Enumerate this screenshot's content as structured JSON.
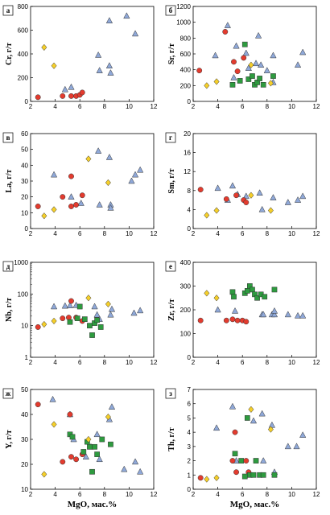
{
  "colors": {
    "triangle": "#8fa8d8",
    "circle": "#e33b2e",
    "square": "#2e9b3f",
    "diamond": "#f5cf2a",
    "stroke": "#333333"
  },
  "chart_data": [
    {
      "type": "scatter",
      "label": "а",
      "ylabel": "Cr, г/т",
      "xlabel": "",
      "xlim": [
        2,
        12
      ],
      "ylim": [
        0,
        800
      ],
      "yticks": [
        0,
        200,
        400,
        600,
        800
      ],
      "ylog": false,
      "series": [
        {
          "marker": "triangle",
          "points": [
            [
              4.8,
              100
            ],
            [
              5.3,
              120
            ],
            [
              7.5,
              390
            ],
            [
              7.6,
              260
            ],
            [
              8.4,
              680
            ],
            [
              8.4,
              300
            ],
            [
              8.5,
              240
            ],
            [
              9.8,
              720
            ],
            [
              10.5,
              570
            ]
          ]
        },
        {
          "marker": "circle",
          "points": [
            [
              2.6,
              35
            ],
            [
              4.6,
              45
            ],
            [
              5.3,
              45
            ],
            [
              5.7,
              45
            ],
            [
              6.0,
              55
            ],
            [
              6.2,
              75
            ]
          ]
        },
        {
          "marker": "diamond",
          "points": [
            [
              3.1,
              455
            ],
            [
              3.9,
              300
            ]
          ]
        }
      ]
    },
    {
      "type": "scatter",
      "label": "б",
      "ylabel": "Sr, г/т",
      "xlabel": "",
      "xlim": [
        2,
        12
      ],
      "ylim": [
        0,
        1200
      ],
      "yticks": [
        0,
        200,
        400,
        600,
        800,
        1000,
        1200
      ],
      "ylog": false,
      "series": [
        {
          "marker": "triangle",
          "points": [
            [
              3.8,
              580
            ],
            [
              4.8,
              960
            ],
            [
              5.3,
              300
            ],
            [
              5.5,
              700
            ],
            [
              6.3,
              610
            ],
            [
              6.5,
              420
            ],
            [
              7.1,
              480
            ],
            [
              7.3,
              830
            ],
            [
              7.5,
              460
            ],
            [
              8.0,
              390
            ],
            [
              8.5,
              580
            ],
            [
              8.5,
              240
            ],
            [
              10.5,
              460
            ],
            [
              10.9,
              620
            ]
          ]
        },
        {
          "marker": "circle",
          "points": [
            [
              2.5,
              390
            ],
            [
              4.6,
              880
            ],
            [
              5.3,
              500
            ],
            [
              5.6,
              380
            ],
            [
              6.1,
              550
            ]
          ]
        },
        {
          "marker": "square",
          "points": [
            [
              5.2,
              210
            ],
            [
              5.8,
              260
            ],
            [
              6.2,
              720
            ],
            [
              6.5,
              280
            ],
            [
              6.8,
              320
            ],
            [
              7.0,
              210
            ],
            [
              7.2,
              240
            ],
            [
              7.4,
              290
            ],
            [
              7.7,
              210
            ],
            [
              8.5,
              320
            ]
          ]
        },
        {
          "marker": "diamond",
          "points": [
            [
              3.1,
              200
            ],
            [
              3.9,
              250
            ],
            [
              6.7,
              460
            ],
            [
              8.3,
              230
            ]
          ]
        }
      ]
    },
    {
      "type": "scatter",
      "label": "в",
      "ylabel": "La, г/т",
      "xlabel": "",
      "xlim": [
        2,
        12
      ],
      "ylim": [
        0,
        60
      ],
      "yticks": [
        0,
        10,
        20,
        30,
        40,
        50,
        60
      ],
      "ylog": false,
      "series": [
        {
          "marker": "triangle",
          "points": [
            [
              3.9,
              34
            ],
            [
              5.3,
              20
            ],
            [
              6.1,
              16
            ],
            [
              7.5,
              49
            ],
            [
              7.6,
              15
            ],
            [
              8.4,
              45
            ],
            [
              8.5,
              15
            ],
            [
              8.5,
              13
            ],
            [
              10.2,
              30
            ],
            [
              10.5,
              34
            ],
            [
              10.9,
              37
            ]
          ]
        },
        {
          "marker": "circle",
          "points": [
            [
              2.6,
              14
            ],
            [
              4.6,
              20
            ],
            [
              5.3,
              33
            ],
            [
              5.3,
              14
            ],
            [
              5.7,
              15
            ],
            [
              6.2,
              21
            ]
          ]
        },
        {
          "marker": "diamond",
          "points": [
            [
              3.1,
              8
            ],
            [
              3.9,
              12
            ],
            [
              6.7,
              44
            ],
            [
              8.3,
              29
            ]
          ]
        }
      ]
    },
    {
      "type": "scatter",
      "label": "г",
      "ylabel": "Sm, г/т",
      "xlabel": "",
      "xlim": [
        2,
        12
      ],
      "ylim": [
        0,
        20
      ],
      "yticks": [
        0,
        4,
        8,
        12,
        16,
        20
      ],
      "ylog": false,
      "series": [
        {
          "marker": "triangle",
          "points": [
            [
              4.0,
              8.5
            ],
            [
              4.8,
              6.0
            ],
            [
              5.2,
              9.0
            ],
            [
              5.6,
              7.2
            ],
            [
              6.3,
              6.8
            ],
            [
              7.4,
              7.5
            ],
            [
              7.6,
              4.0
            ],
            [
              8.5,
              6.5
            ],
            [
              9.7,
              5.5
            ],
            [
              10.5,
              6.0
            ],
            [
              10.9,
              6.8
            ]
          ]
        },
        {
          "marker": "circle",
          "points": [
            [
              2.6,
              8.2
            ],
            [
              4.7,
              6.2
            ],
            [
              5.5,
              7.0
            ],
            [
              6.1,
              6.0
            ],
            [
              6.3,
              5.5
            ]
          ]
        },
        {
          "marker": "diamond",
          "points": [
            [
              3.1,
              2.8
            ],
            [
              3.9,
              3.8
            ],
            [
              6.7,
              7.0
            ],
            [
              8.3,
              3.8
            ]
          ]
        }
      ]
    },
    {
      "type": "scatter",
      "label": "д",
      "ylabel": "Nb, г/т",
      "xlabel": "",
      "xlim": [
        2,
        12
      ],
      "ylim": [
        1,
        1000
      ],
      "yticks": [
        1,
        10,
        100,
        1000
      ],
      "ylog": true,
      "series": [
        {
          "marker": "triangle",
          "points": [
            [
              3.9,
              40
            ],
            [
              4.8,
              42
            ],
            [
              5.2,
              43
            ],
            [
              5.7,
              44
            ],
            [
              7.2,
              40
            ],
            [
              7.4,
              22
            ],
            [
              7.6,
              16
            ],
            [
              8.5,
              22
            ],
            [
              8.6,
              33
            ],
            [
              10.4,
              25
            ],
            [
              10.9,
              30
            ]
          ]
        },
        {
          "marker": "circle",
          "points": [
            [
              2.6,
              9
            ],
            [
              4.6,
              17
            ],
            [
              5.1,
              18
            ],
            [
              5.3,
              60
            ],
            [
              5.7,
              18
            ],
            [
              6.2,
              14
            ]
          ]
        },
        {
          "marker": "square",
          "points": [
            [
              5.2,
              13
            ],
            [
              5.8,
              17
            ],
            [
              6.0,
              40
            ],
            [
              6.4,
              16
            ],
            [
              6.8,
              10
            ],
            [
              7.0,
              5
            ],
            [
              7.2,
              12
            ],
            [
              7.4,
              15
            ],
            [
              7.7,
              9
            ]
          ]
        },
        {
          "marker": "diamond",
          "points": [
            [
              3.1,
              11
            ],
            [
              3.9,
              14
            ],
            [
              6.7,
              75
            ],
            [
              8.3,
              48
            ]
          ]
        }
      ]
    },
    {
      "type": "scatter",
      "label": "е",
      "ylabel": "Zr, г/т",
      "xlabel": "",
      "xlim": [
        2,
        12
      ],
      "ylim": [
        0,
        400
      ],
      "yticks": [
        0,
        100,
        200,
        300,
        400
      ],
      "ylog": false,
      "series": [
        {
          "marker": "triangle",
          "points": [
            [
              4.0,
              200
            ],
            [
              5.4,
              195
            ],
            [
              7.6,
              180
            ],
            [
              7.7,
              180
            ],
            [
              8.4,
              180
            ],
            [
              8.6,
              180
            ],
            [
              8.6,
              195
            ],
            [
              9.7,
              180
            ],
            [
              10.5,
              175
            ],
            [
              10.9,
              175
            ]
          ]
        },
        {
          "marker": "circle",
          "points": [
            [
              2.6,
              155
            ],
            [
              4.7,
              155
            ],
            [
              5.2,
              160
            ],
            [
              5.6,
              155
            ],
            [
              6.0,
              155
            ],
            [
              6.3,
              150
            ]
          ]
        },
        {
          "marker": "square",
          "points": [
            [
              5.2,
              275
            ],
            [
              5.3,
              255
            ],
            [
              6.2,
              270
            ],
            [
              6.4,
              280
            ],
            [
              6.6,
              300
            ],
            [
              6.8,
              285
            ],
            [
              7.0,
              265
            ],
            [
              7.2,
              250
            ],
            [
              7.5,
              265
            ],
            [
              7.8,
              255
            ],
            [
              8.6,
              285
            ]
          ]
        },
        {
          "marker": "diamond",
          "points": [
            [
              3.1,
              270
            ],
            [
              3.9,
              250
            ]
          ]
        }
      ]
    },
    {
      "type": "scatter",
      "label": "ж",
      "ylabel": "Y, г/т",
      "xlabel": "MgO, мас.%",
      "xlim": [
        2,
        12
      ],
      "ylim": [
        10,
        50
      ],
      "yticks": [
        10,
        20,
        30,
        40,
        50
      ],
      "ylog": false,
      "series": [
        {
          "marker": "triangle",
          "points": [
            [
              3.8,
              46
            ],
            [
              5.2,
              40
            ],
            [
              5.5,
              30
            ],
            [
              6.5,
              23
            ],
            [
              6.9,
              27
            ],
            [
              7.4,
              32
            ],
            [
              7.6,
              22
            ],
            [
              8.4,
              38
            ],
            [
              8.6,
              43
            ],
            [
              9.6,
              18
            ],
            [
              10.5,
              21
            ],
            [
              10.9,
              17
            ]
          ]
        },
        {
          "marker": "circle",
          "points": [
            [
              2.6,
              44
            ],
            [
              4.6,
              21
            ],
            [
              5.2,
              40
            ],
            [
              5.3,
              23
            ],
            [
              5.7,
              22
            ],
            [
              6.2,
              24
            ]
          ]
        },
        {
          "marker": "square",
          "points": [
            [
              5.2,
              32
            ],
            [
              5.4,
              31
            ],
            [
              6.3,
              25
            ],
            [
              6.6,
              29
            ],
            [
              6.8,
              27
            ],
            [
              7.0,
              17
            ],
            [
              7.2,
              27
            ],
            [
              7.4,
              24
            ],
            [
              7.8,
              30
            ],
            [
              8.5,
              28
            ]
          ]
        },
        {
          "marker": "diamond",
          "points": [
            [
              3.1,
              16
            ],
            [
              3.9,
              36
            ],
            [
              6.7,
              30
            ],
            [
              8.3,
              39
            ]
          ]
        }
      ]
    },
    {
      "type": "scatter",
      "label": "з",
      "ylabel": "Th, г/т",
      "xlabel": "MgO, мас.%",
      "xlim": [
        2,
        12
      ],
      "ylim": [
        0,
        7
      ],
      "yticks": [
        0,
        1,
        2,
        3,
        4,
        5,
        6,
        7
      ],
      "ylog": false,
      "series": [
        {
          "marker": "triangle",
          "points": [
            [
              3.9,
              4.3
            ],
            [
              5.2,
              5.8
            ],
            [
              5.5,
              2.0
            ],
            [
              6.9,
              4.8
            ],
            [
              7.6,
              5.3
            ],
            [
              7.7,
              2.0
            ],
            [
              8.4,
              4.5
            ],
            [
              8.6,
              1.2
            ],
            [
              9.7,
              3.0
            ],
            [
              10.4,
              3.0
            ],
            [
              10.9,
              3.8
            ]
          ]
        },
        {
          "marker": "circle",
          "points": [
            [
              2.6,
              0.8
            ],
            [
              5.2,
              2.0
            ],
            [
              5.4,
              4.0
            ],
            [
              5.5,
              1.2
            ],
            [
              6.3,
              2.0
            ],
            [
              6.5,
              1.2
            ]
          ]
        },
        {
          "marker": "square",
          "points": [
            [
              5.4,
              2.5
            ],
            [
              5.9,
              2.0
            ],
            [
              6.2,
              0.9
            ],
            [
              6.4,
              5.0
            ],
            [
              6.6,
              1.0
            ],
            [
              6.9,
              1.0
            ],
            [
              7.1,
              2.0
            ],
            [
              7.4,
              1.0
            ],
            [
              7.7,
              1.0
            ],
            [
              8.6,
              1.0
            ]
          ]
        },
        {
          "marker": "diamond",
          "points": [
            [
              3.1,
              0.7
            ],
            [
              3.9,
              0.8
            ],
            [
              6.7,
              5.6
            ],
            [
              8.3,
              4.2
            ]
          ]
        }
      ]
    }
  ]
}
